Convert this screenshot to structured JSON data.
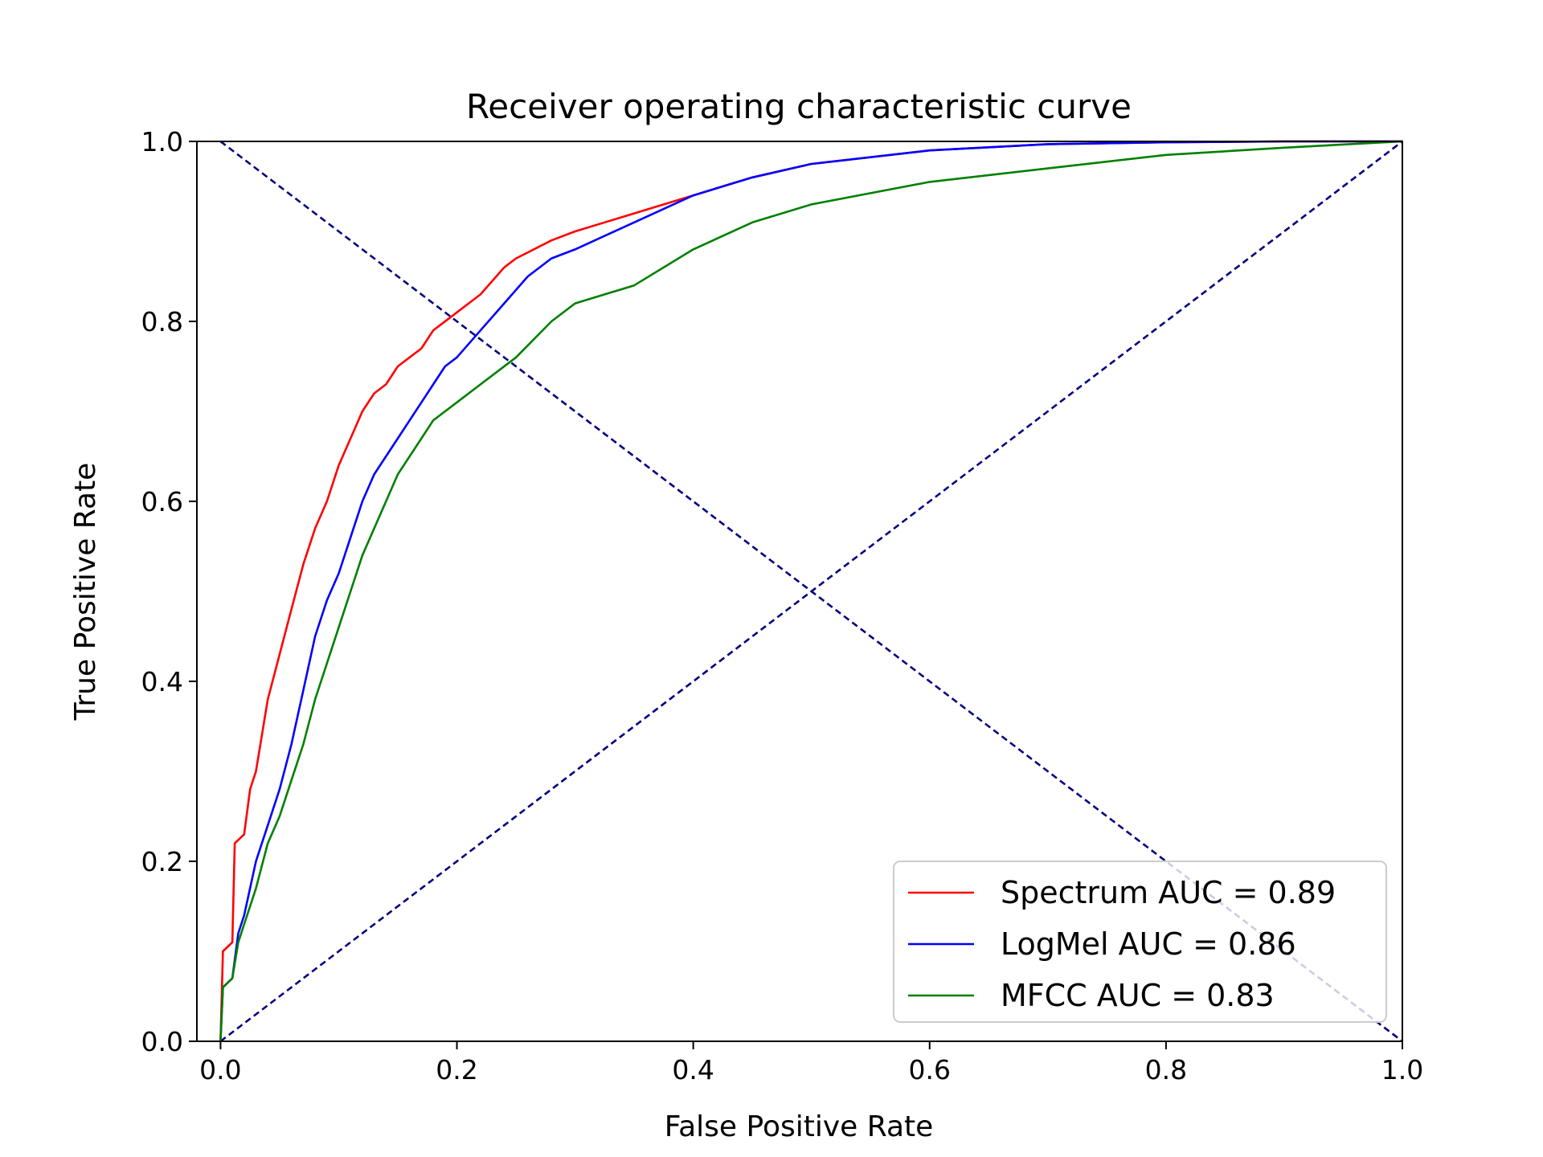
{
  "chart_data": {
    "type": "line",
    "title": "Receiver operating characteristic curve",
    "xlabel": "False Positive Rate",
    "ylabel": "True Positive Rate",
    "xlim": [
      -0.02,
      1.0
    ],
    "ylim": [
      0.0,
      1.0
    ],
    "xticks": [
      "0.0",
      "0.2",
      "0.4",
      "0.6",
      "0.8",
      "1.0"
    ],
    "yticks": [
      "0.0",
      "0.2",
      "0.4",
      "0.6",
      "0.8",
      "1.0"
    ],
    "grid": false,
    "legend_position": "lower-right",
    "series": [
      {
        "name": "Spectrum AUC = 0.89",
        "color": "#ff0000",
        "x": [
          0.0,
          0.002,
          0.01,
          0.012,
          0.02,
          0.025,
          0.03,
          0.04,
          0.05,
          0.06,
          0.07,
          0.08,
          0.09,
          0.1,
          0.11,
          0.12,
          0.13,
          0.14,
          0.15,
          0.16,
          0.17,
          0.18,
          0.2,
          0.22,
          0.24,
          0.25,
          0.28,
          0.3,
          0.35,
          0.4,
          0.45,
          0.5,
          0.6,
          0.7,
          0.8,
          0.9,
          1.0
        ],
        "y": [
          0.0,
          0.1,
          0.11,
          0.22,
          0.23,
          0.28,
          0.3,
          0.38,
          0.43,
          0.48,
          0.53,
          0.57,
          0.6,
          0.64,
          0.67,
          0.7,
          0.72,
          0.73,
          0.75,
          0.76,
          0.77,
          0.79,
          0.81,
          0.83,
          0.86,
          0.87,
          0.89,
          0.9,
          0.92,
          0.94,
          0.96,
          0.975,
          0.99,
          0.997,
          0.999,
          1.0,
          1.0
        ]
      },
      {
        "name": "LogMel AUC = 0.86",
        "color": "#0000ff",
        "x": [
          0.0,
          0.002,
          0.01,
          0.015,
          0.02,
          0.03,
          0.04,
          0.05,
          0.06,
          0.07,
          0.08,
          0.09,
          0.1,
          0.11,
          0.12,
          0.13,
          0.14,
          0.15,
          0.16,
          0.17,
          0.18,
          0.19,
          0.2,
          0.22,
          0.24,
          0.26,
          0.28,
          0.3,
          0.35,
          0.4,
          0.45,
          0.5,
          0.6,
          0.7,
          0.8,
          0.9,
          1.0
        ],
        "y": [
          0.0,
          0.06,
          0.07,
          0.12,
          0.14,
          0.2,
          0.24,
          0.28,
          0.33,
          0.39,
          0.45,
          0.49,
          0.52,
          0.56,
          0.6,
          0.63,
          0.65,
          0.67,
          0.69,
          0.71,
          0.73,
          0.75,
          0.76,
          0.79,
          0.82,
          0.85,
          0.87,
          0.88,
          0.91,
          0.94,
          0.96,
          0.975,
          0.99,
          0.997,
          0.999,
          1.0,
          1.0
        ]
      },
      {
        "name": "MFCC AUC = 0.83",
        "color": "#008000",
        "x": [
          0.0,
          0.002,
          0.01,
          0.015,
          0.02,
          0.03,
          0.04,
          0.05,
          0.06,
          0.07,
          0.08,
          0.09,
          0.1,
          0.11,
          0.12,
          0.13,
          0.14,
          0.15,
          0.16,
          0.17,
          0.18,
          0.19,
          0.2,
          0.22,
          0.25,
          0.28,
          0.3,
          0.35,
          0.4,
          0.45,
          0.5,
          0.6,
          0.7,
          0.8,
          0.9,
          1.0
        ],
        "y": [
          0.0,
          0.06,
          0.07,
          0.11,
          0.13,
          0.17,
          0.22,
          0.25,
          0.29,
          0.33,
          0.38,
          0.42,
          0.46,
          0.5,
          0.54,
          0.57,
          0.6,
          0.63,
          0.65,
          0.67,
          0.69,
          0.7,
          0.71,
          0.73,
          0.76,
          0.8,
          0.82,
          0.84,
          0.88,
          0.91,
          0.93,
          0.955,
          0.97,
          0.985,
          0.993,
          1.0
        ]
      }
    ],
    "reference_lines": [
      {
        "color": "#000080",
        "style": "dashed",
        "x": [
          0.0,
          1.0
        ],
        "y": [
          0.0,
          1.0
        ]
      },
      {
        "color": "#000080",
        "style": "dashed",
        "x": [
          0.0,
          1.0
        ],
        "y": [
          1.0,
          0.0
        ]
      }
    ]
  }
}
